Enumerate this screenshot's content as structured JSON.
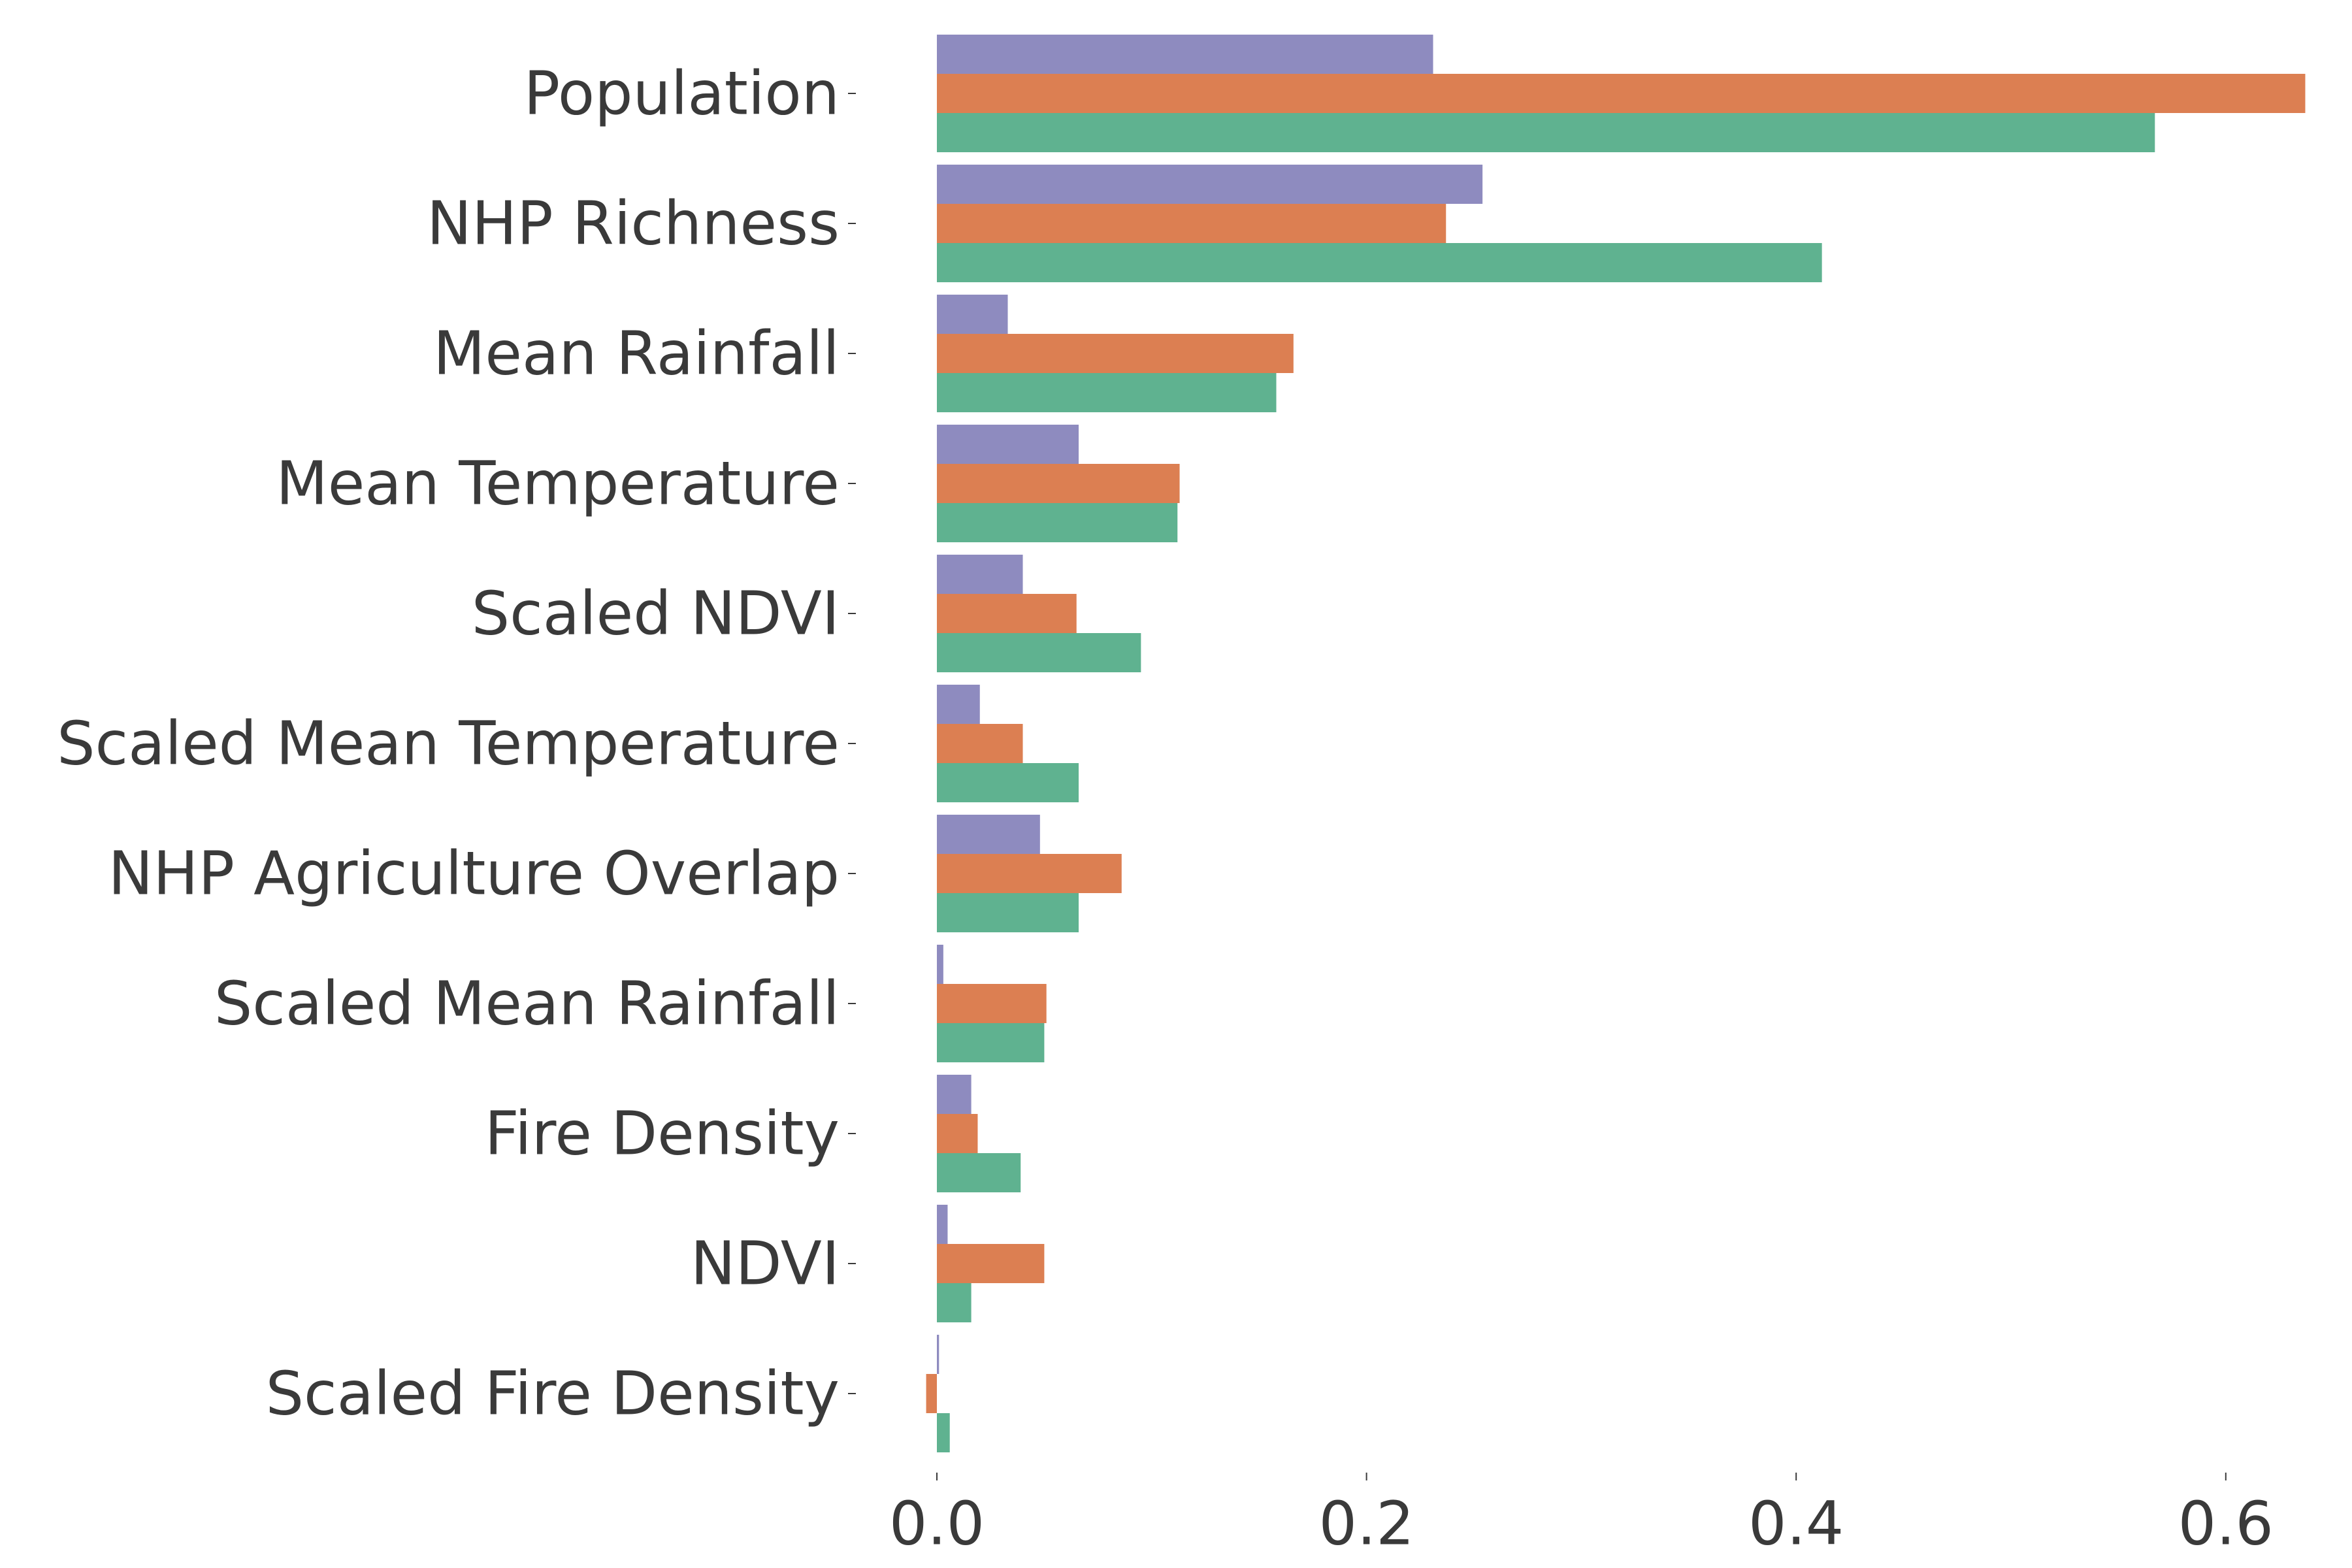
{
  "chart_data": {
    "type": "bar",
    "orientation": "horizontal",
    "title": "",
    "xlabel": "",
    "ylabel": "",
    "xlim": [
      -0.025,
      0.64
    ],
    "x_ticks": [
      0.0,
      0.2,
      0.4,
      0.6
    ],
    "x_tick_labels": [
      "0.0",
      "0.2",
      "0.4",
      "0.6"
    ],
    "grid": false,
    "legend": "none",
    "categories": [
      "Population",
      "NHP Richness",
      "Mean Rainfall",
      "Mean Temperature",
      "Scaled NDVI",
      "Scaled Mean Temperature",
      "NHP Agriculture Overlap",
      "Scaled Mean Rainfall",
      "Fire Density",
      "NDVI",
      "Scaled Fire Density"
    ],
    "series": [
      {
        "color": "#8e8bbf",
        "values": [
          0.231,
          0.254,
          0.033,
          0.066,
          0.04,
          0.02,
          0.048,
          0.003,
          0.016,
          0.005,
          0.001
        ]
      },
      {
        "color": "#dc7f52",
        "values": [
          0.637,
          0.237,
          0.166,
          0.113,
          0.065,
          0.04,
          0.086,
          0.051,
          0.019,
          0.05,
          -0.005
        ]
      },
      {
        "color": "#5fb290",
        "values": [
          0.567,
          0.412,
          0.158,
          0.112,
          0.095,
          0.066,
          0.066,
          0.05,
          0.039,
          0.016,
          0.006
        ]
      }
    ]
  }
}
